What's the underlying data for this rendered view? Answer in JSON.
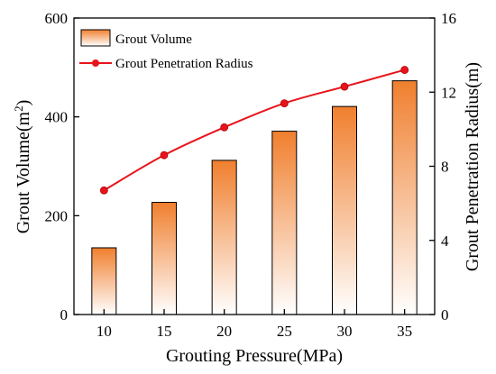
{
  "chart_data": {
    "type": "bar+line",
    "categories": [
      "10",
      "15",
      "20",
      "25",
      "30",
      "35"
    ],
    "series": [
      {
        "name": "Grout Volume",
        "type": "bar",
        "axis": "left",
        "values": [
          135,
          227,
          312,
          371,
          421,
          473
        ],
        "color_top": "#f07f2e",
        "color_bottom": "#ffffff"
      },
      {
        "name": "Grout Penetration Radius",
        "type": "line",
        "axis": "right",
        "values": [
          6.7,
          8.6,
          10.1,
          11.4,
          12.3,
          13.2
        ],
        "color": "#e8141c"
      }
    ],
    "xlabel": "Grouting Pressure(MPa)",
    "ylabel_left": {
      "main": "Grout Volume(m",
      "sup": "2",
      "end": ")"
    },
    "ylabel_right": "Grout Penetration Radius(m)",
    "ylim_left": [
      0,
      600
    ],
    "ylim_right": [
      0,
      16
    ],
    "yticks_left": [
      "0",
      "200",
      "400",
      "600"
    ],
    "yticks_right": [
      "0",
      "4",
      "8",
      "12",
      "16"
    ],
    "grid": false,
    "legend_position": "top-left"
  }
}
